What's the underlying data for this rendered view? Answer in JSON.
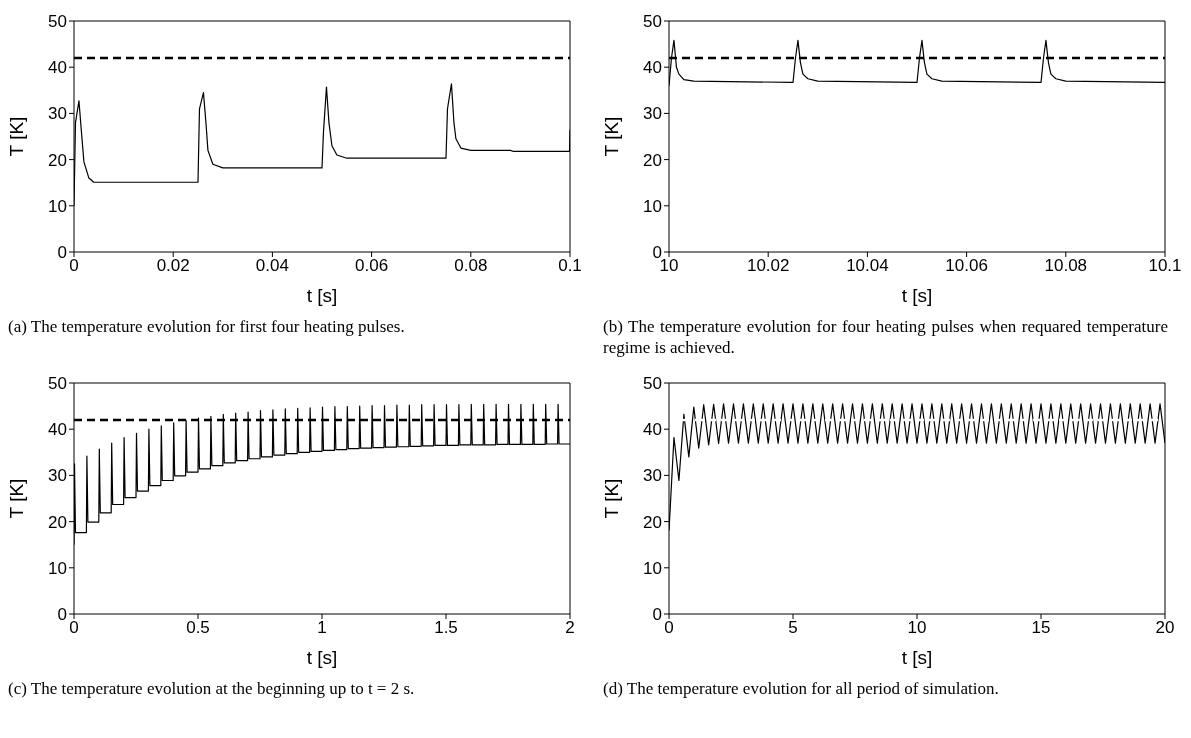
{
  "chart_data": [
    {
      "type": "line",
      "xlabel": "t [s]",
      "ylabel": "T [K]",
      "xlim": [
        0,
        0.1
      ],
      "xticks": [
        0,
        0.02,
        0.04,
        0.06,
        0.08,
        0.1
      ],
      "ylim": [
        0,
        50
      ],
      "yticks": [
        0,
        10,
        20,
        30,
        40,
        50
      ],
      "color": "#000000",
      "line_style": "solid",
      "x": [
        0,
        0.0003,
        0.001,
        0.0015,
        0.002,
        0.003,
        0.004,
        0.025,
        0.0253,
        0.0261,
        0.0266,
        0.027,
        0.028,
        0.03,
        0.05,
        0.0503,
        0.0509,
        0.0514,
        0.052,
        0.053,
        0.055,
        0.075,
        0.0753,
        0.0761,
        0.0766,
        0.077,
        0.078,
        0.08,
        0.088,
        0.0885,
        0.0999,
        0.1
      ],
      "values": [
        10,
        28,
        32.7,
        26,
        19.5,
        16,
        15.1,
        15.1,
        31,
        34.5,
        28,
        22,
        19,
        18.2,
        18.2,
        26,
        35.7,
        28,
        23,
        21,
        20.3,
        20.3,
        31,
        36.4,
        28,
        24.5,
        22.5,
        22,
        22,
        21.8,
        21.8,
        26.5
      ],
      "ref_lines": [
        {
          "axis": "y",
          "value": 42,
          "color": "#000000",
          "line_style": "dashed"
        }
      ],
      "annotations": [
        "(a) The temperature evolution for first four heating pulses."
      ]
    },
    {
      "type": "line",
      "xlabel": "t [s]",
      "ylabel": "T [K]",
      "xlim": [
        10,
        10.1
      ],
      "xticks": [
        10,
        10.02,
        10.04,
        10.06,
        10.08,
        10.1
      ],
      "ylim": [
        0,
        50
      ],
      "yticks": [
        0,
        10,
        20,
        30,
        40,
        50
      ],
      "color": "#000000",
      "line_style": "solid",
      "x": [
        10,
        10.0005,
        10.001,
        10.0015,
        10.002,
        10.003,
        10.005,
        10.025,
        10.0255,
        10.026,
        10.0265,
        10.027,
        10.028,
        10.03,
        10.05,
        10.0505,
        10.051,
        10.0515,
        10.052,
        10.053,
        10.055,
        10.075,
        10.0755,
        10.076,
        10.0765,
        10.077,
        10.078,
        10.08,
        10.1
      ],
      "values": [
        36,
        42,
        45.8,
        40,
        38.5,
        37.3,
        37,
        36.7,
        42,
        45.8,
        41,
        38.5,
        37.5,
        37,
        36.7,
        42,
        45.8,
        41,
        38.5,
        37.5,
        37,
        36.7,
        42,
        45.8,
        41,
        38.5,
        37.5,
        37,
        36.7
      ],
      "ref_lines": [
        {
          "axis": "y",
          "value": 42,
          "color": "#000000",
          "line_style": "dashed"
        }
      ],
      "annotations": [
        "(b) The temperature evolution for four heating pulses when requared temperature regime is achieved."
      ]
    },
    {
      "type": "line",
      "xlabel": "t [s]",
      "ylabel": "T [K]",
      "xlim": [
        0,
        2
      ],
      "xticks": [
        0,
        0.5,
        1,
        1.5,
        2
      ],
      "ylim": [
        0,
        50
      ],
      "yticks": [
        0,
        10,
        20,
        30,
        40,
        50
      ],
      "color": "#000000",
      "line_style": "solid",
      "x": [
        0,
        0.002,
        0.006,
        0.05,
        0.052,
        0.056,
        0.1,
        0.102,
        0.106,
        0.15,
        0.152,
        0.156,
        0.2,
        0.202,
        0.206,
        0.25,
        0.252,
        0.256,
        0.3,
        0.302,
        0.306,
        0.35,
        0.352,
        0.356,
        0.4,
        0.402,
        0.406,
        0.45,
        0.452,
        0.456,
        0.5,
        0.502,
        0.506,
        0.55,
        0.552,
        0.556,
        0.6,
        0.602,
        0.606,
        0.65,
        0.652,
        0.656,
        0.7,
        0.702,
        0.706,
        0.75,
        0.752,
        0.756,
        0.8,
        0.802,
        0.806,
        0.85,
        0.852,
        0.856,
        0.9,
        0.902,
        0.906,
        0.95,
        0.952,
        0.956,
        1,
        1.002,
        1.006,
        1.05,
        1.052,
        1.056,
        1.1,
        1.102,
        1.106,
        1.15,
        1.152,
        1.156,
        1.2,
        1.202,
        1.206,
        1.25,
        1.252,
        1.256,
        1.3,
        1.302,
        1.306,
        1.35,
        1.352,
        1.356,
        1.4,
        1.402,
        1.406,
        1.45,
        1.452,
        1.456,
        1.5,
        1.502,
        1.506,
        1.55,
        1.552,
        1.556,
        1.6,
        1.602,
        1.606,
        1.65,
        1.652,
        1.656,
        1.7,
        1.702,
        1.706,
        1.75,
        1.752,
        1.756,
        1.8,
        1.802,
        1.806,
        1.85,
        1.852,
        1.856,
        1.9,
        1.902,
        1.906,
        1.95,
        1.952,
        1.956,
        2
      ],
      "values": [
        15,
        32.5,
        17.6,
        17.6,
        34.2,
        19.9,
        19.9,
        35.7,
        21.9,
        21.9,
        37,
        23.7,
        23.7,
        38.2,
        25.2,
        25.2,
        39.1,
        26.6,
        26.6,
        40,
        27.8,
        27.8,
        40.7,
        28.9,
        28.9,
        41.4,
        29.9,
        29.9,
        41.9,
        30.7,
        30.7,
        42.4,
        31.4,
        31.4,
        42.8,
        32.1,
        32.1,
        43.2,
        32.7,
        32.7,
        43.5,
        33.2,
        33.2,
        43.7,
        33.6,
        33.6,
        44,
        34,
        34,
        44.2,
        34.4,
        34.4,
        44.4,
        34.7,
        34.7,
        44.5,
        35,
        35,
        44.6,
        35.2,
        35.2,
        44.8,
        35.4,
        35.4,
        44.9,
        35.6,
        35.6,
        44.9,
        35.8,
        35.8,
        45,
        35.9,
        35.9,
        45.1,
        36,
        36,
        45.1,
        36.1,
        36.1,
        45.2,
        36.2,
        36.2,
        45.2,
        36.3,
        36.3,
        45.3,
        36.4,
        36.4,
        45.3,
        36.5,
        36.5,
        45.3,
        36.5,
        36.5,
        45.3,
        36.6,
        36.6,
        45.4,
        36.6,
        36.6,
        45.4,
        36.6,
        36.6,
        45.4,
        36.7,
        36.7,
        45.4,
        36.7,
        36.7,
        45.4,
        36.7,
        36.7,
        45.4,
        36.7,
        36.7,
        45.4,
        36.8,
        36.8,
        45.4,
        36.8,
        36.8
      ],
      "ref_lines": [
        {
          "axis": "y",
          "value": 42,
          "color": "#000000",
          "line_style": "dashed"
        }
      ],
      "annotations": [
        "(c) The temperature evolution at the beginning up to t = 2 s."
      ]
    },
    {
      "type": "line",
      "xlabel": "t [s]",
      "ylabel": "T [K]",
      "xlim": [
        0,
        20
      ],
      "xticks": [
        0,
        5,
        10,
        15,
        20
      ],
      "ylim": [
        0,
        50
      ],
      "yticks": [
        0,
        10,
        20,
        30,
        40,
        50
      ],
      "color": "#000000",
      "line_style": "solid",
      "x": [
        0,
        0.2,
        0.4,
        0.6,
        0.8,
        1,
        1.2,
        1.4,
        1.6,
        1.8,
        2,
        2.2,
        2.4,
        2.6,
        2.8,
        3,
        3.2,
        3.4,
        3.6,
        3.8,
        4,
        4.2,
        4.4,
        4.6,
        4.8,
        5,
        5.2,
        5.4,
        5.6,
        5.8,
        6,
        6.2,
        6.4,
        6.6,
        6.8,
        7,
        7.2,
        7.4,
        7.6,
        7.8,
        8,
        8.2,
        8.4,
        8.6,
        8.8,
        9,
        9.2,
        9.4,
        9.6,
        9.8,
        10,
        10.2,
        10.4,
        10.6,
        10.8,
        11,
        11.2,
        11.4,
        11.6,
        11.8,
        12,
        12.2,
        12.4,
        12.6,
        12.8,
        13,
        13.2,
        13.4,
        13.6,
        13.8,
        14,
        14.2,
        14.4,
        14.6,
        14.8,
        15,
        15.2,
        15.4,
        15.6,
        15.8,
        16,
        16.2,
        16.4,
        16.6,
        16.8,
        17,
        17.2,
        17.4,
        17.6,
        17.8,
        18,
        18.2,
        18.4,
        18.6,
        18.8,
        19,
        19.2,
        19.4,
        19.6,
        19.8,
        20
      ],
      "values": [
        18,
        38.2,
        28.9,
        43.2,
        34,
        44.8,
        35.9,
        45.3,
        36.6,
        45.4,
        36.9,
        45.5,
        37,
        45.5,
        37,
        45.5,
        37,
        45.5,
        37,
        45.5,
        37,
        45.5,
        37,
        45.5,
        37,
        45.5,
        37,
        45.5,
        37,
        45.5,
        37,
        45.5,
        37,
        45.5,
        37,
        45.5,
        37,
        45.5,
        37,
        45.5,
        37,
        45.5,
        37,
        45.5,
        37,
        45.5,
        37,
        45.5,
        37,
        45.5,
        37,
        45.5,
        37,
        45.5,
        37,
        45.5,
        37,
        45.5,
        37,
        45.5,
        37,
        45.5,
        37,
        45.5,
        37,
        45.5,
        37,
        45.5,
        37,
        45.5,
        37,
        45.5,
        37,
        45.5,
        37,
        45.5,
        37,
        45.5,
        37,
        45.5,
        37,
        45.5,
        37,
        45.5,
        37,
        45.5,
        37,
        45.5,
        37,
        45.5,
        37,
        45.5,
        37,
        45.5,
        37,
        45.5,
        37,
        45.5,
        37,
        45.5,
        37
      ],
      "ref_lines": [
        {
          "axis": "y",
          "value": 42,
          "color": "#ffffff",
          "line_style": "dashed"
        }
      ],
      "annotations": [
        "(d) The temperature evolution for all period of simulation."
      ]
    }
  ]
}
